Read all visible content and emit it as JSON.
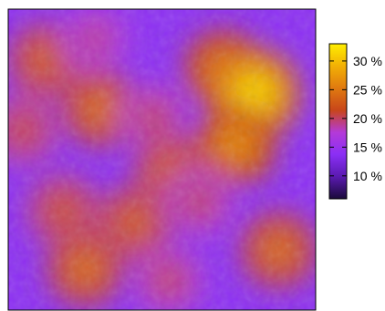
{
  "chart_data": {
    "type": "heatmap",
    "title": "",
    "xlabel": "",
    "ylabel": "",
    "colorbar": {
      "range": [
        6,
        33
      ],
      "tick_values": [
        10,
        15,
        20,
        25,
        30
      ],
      "tick_labels": [
        "10 %",
        "15 %",
        "20 %",
        "25 %",
        "30 %"
      ],
      "colormap": [
        "#1a0a3a",
        "#5a1ab0",
        "#8a2ff5",
        "#b43ad8",
        "#c8461a",
        "#e07a10",
        "#f2b005",
        "#ffee00"
      ]
    },
    "base_value": 14,
    "hotspots": [
      {
        "x": 0.12,
        "y": 0.17,
        "value": 23
      },
      {
        "x": 0.28,
        "y": 0.1,
        "value": 19
      },
      {
        "x": 0.3,
        "y": 0.33,
        "value": 24
      },
      {
        "x": 0.05,
        "y": 0.4,
        "value": 21
      },
      {
        "x": 0.18,
        "y": 0.67,
        "value": 22
      },
      {
        "x": 0.25,
        "y": 0.86,
        "value": 24
      },
      {
        "x": 0.41,
        "y": 0.71,
        "value": 23
      },
      {
        "x": 0.47,
        "y": 0.36,
        "value": 20
      },
      {
        "x": 0.53,
        "y": 0.54,
        "value": 23
      },
      {
        "x": 0.7,
        "y": 0.2,
        "value": 25
      },
      {
        "x": 0.8,
        "y": 0.28,
        "value": 31
      },
      {
        "x": 0.74,
        "y": 0.45,
        "value": 26
      },
      {
        "x": 0.62,
        "y": 0.64,
        "value": 20
      },
      {
        "x": 0.88,
        "y": 0.8,
        "value": 24
      },
      {
        "x": 0.52,
        "y": 0.9,
        "value": 20
      }
    ]
  }
}
